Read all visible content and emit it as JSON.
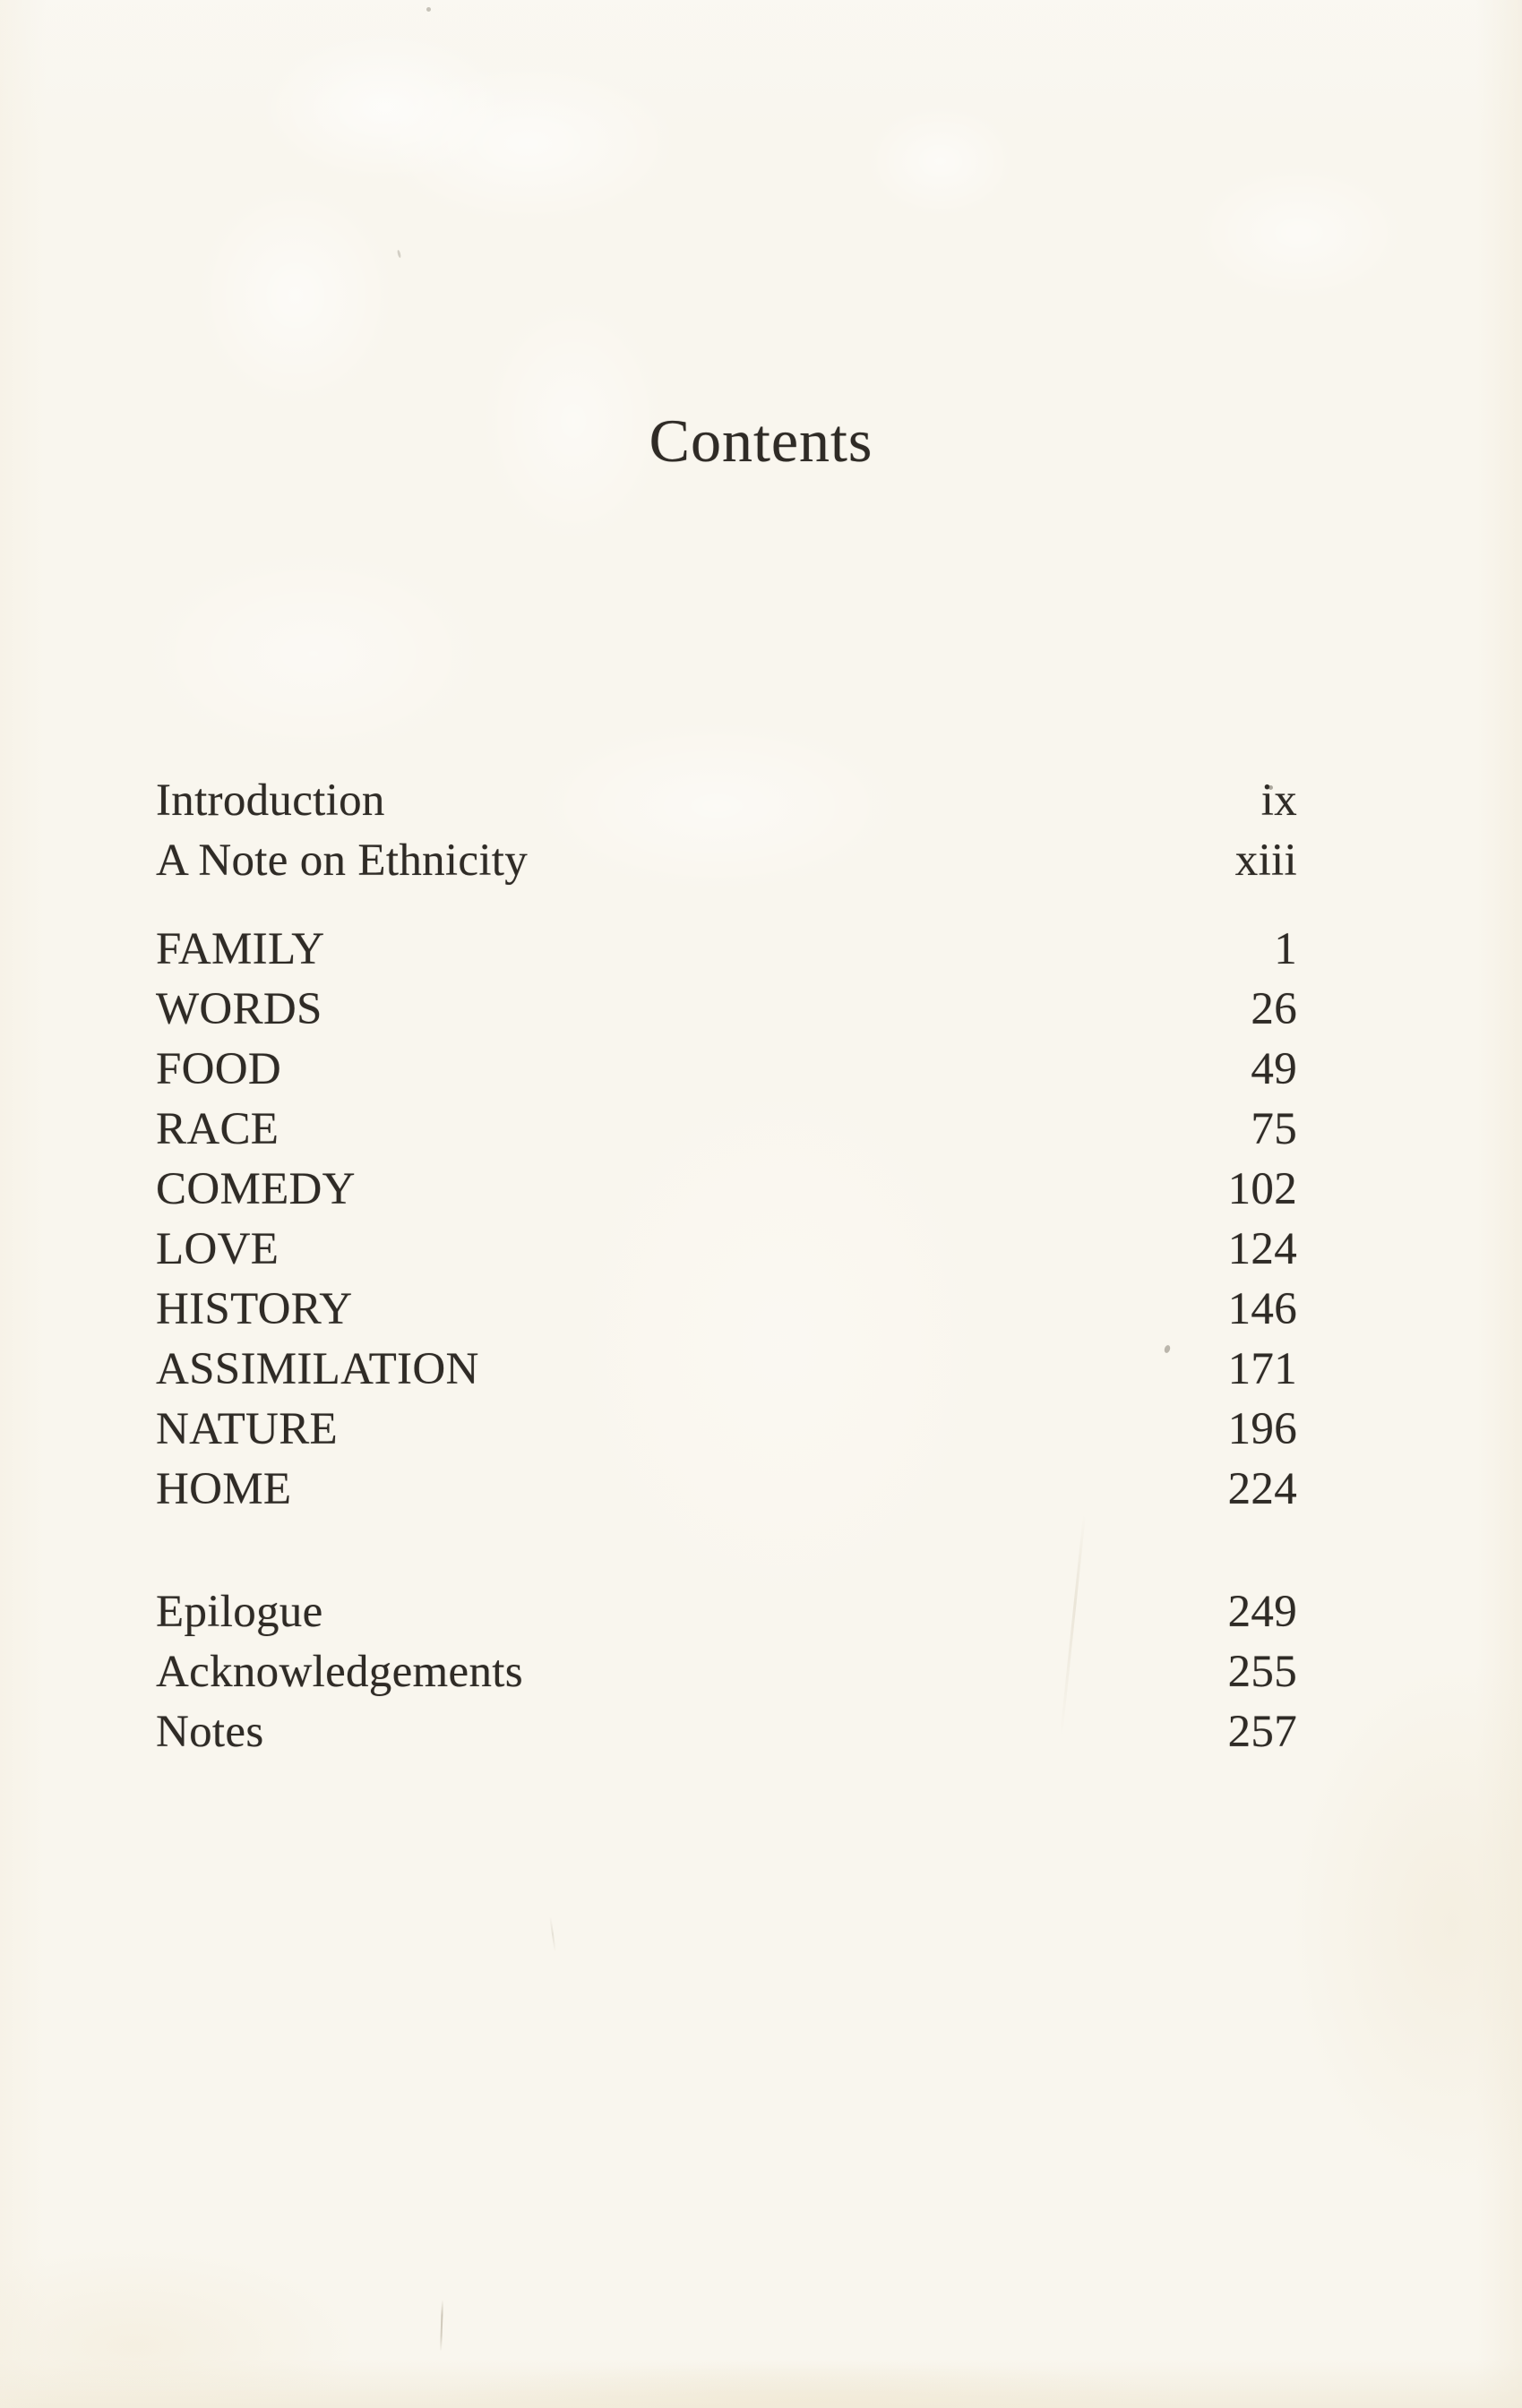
{
  "page": {
    "title": "Contents"
  },
  "colors": {
    "paper": "#f9f6ee",
    "ink": "#2f2b26"
  },
  "toc": {
    "front_matter": [
      {
        "label": "Introduction",
        "page": "ix"
      },
      {
        "label": "A Note on Ethnicity",
        "page": "xiii"
      }
    ],
    "chapters": [
      {
        "label": "FAMILY",
        "page": "1"
      },
      {
        "label": "WORDS",
        "page": "26"
      },
      {
        "label": "FOOD",
        "page": "49"
      },
      {
        "label": "RACE",
        "page": "75"
      },
      {
        "label": "COMEDY",
        "page": "102"
      },
      {
        "label": "LOVE",
        "page": "124"
      },
      {
        "label": "HISTORY",
        "page": "146"
      },
      {
        "label": "ASSIMILATION",
        "page": "171"
      },
      {
        "label": "NATURE",
        "page": "196"
      },
      {
        "label": "HOME",
        "page": "224"
      }
    ],
    "back_matter": [
      {
        "label": "Epilogue",
        "page": "249"
      },
      {
        "label": "Acknowledgements",
        "page": "255"
      },
      {
        "label": "Notes",
        "page": "257"
      }
    ]
  }
}
